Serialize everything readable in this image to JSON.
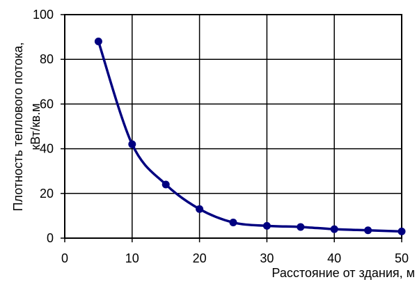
{
  "chart_data": {
    "type": "line",
    "title": "",
    "xlabel": "Расстояние от здания, м",
    "ylabel_line1": "Плотность теплового потока,",
    "ylabel_line2": "кВт/кв.м",
    "xlim": [
      0,
      50
    ],
    "ylim": [
      0,
      100
    ],
    "x_ticks": [
      0,
      10,
      20,
      30,
      40,
      50
    ],
    "y_ticks": [
      0,
      20,
      40,
      60,
      80,
      100
    ],
    "grid": true,
    "line_color": "#000080",
    "series": [
      {
        "x": [
          5,
          10,
          15,
          20,
          25,
          30,
          35,
          40,
          45,
          50
        ],
        "y": [
          88,
          42,
          24,
          13,
          7,
          5.5,
          5,
          4,
          3.5,
          3
        ]
      }
    ]
  }
}
